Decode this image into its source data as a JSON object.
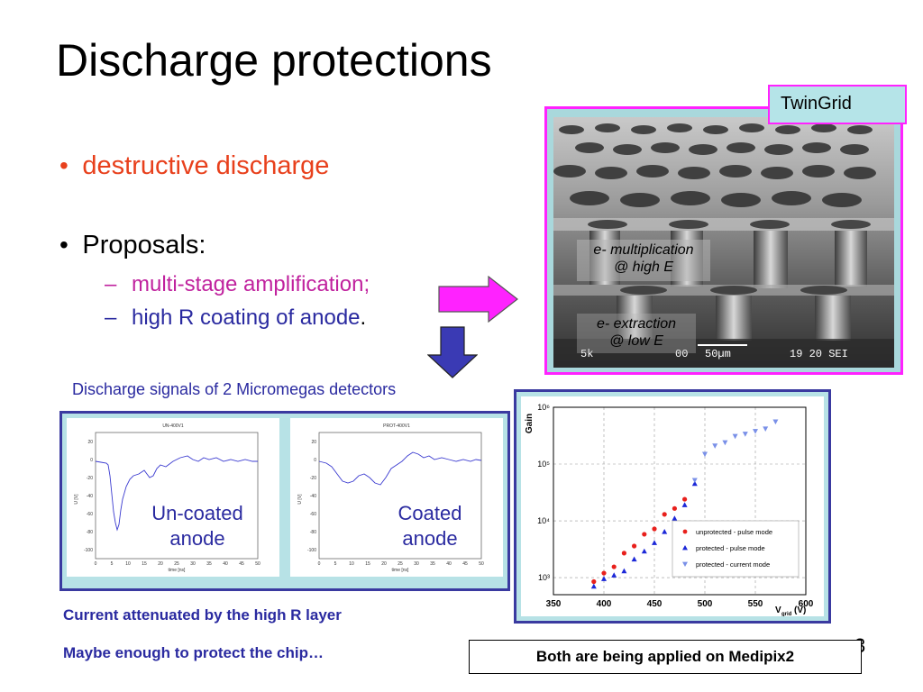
{
  "slide": {
    "title": "Discharge protections",
    "page_number_fragment": "3"
  },
  "bullets": {
    "b1": "destructive discharge",
    "b2": "Proposals:",
    "sub1": "multi-stage amplification;",
    "sub2": "high R coating of anode",
    "sub2_tail": "."
  },
  "sem": {
    "badge": "TwinGrid",
    "label_mult_1": "e- multiplication",
    "label_mult_2": "@ high E",
    "label_extr_1": "e- extraction",
    "label_extr_2": "@ low E",
    "scale_left": "5k",
    "scale_mid": "00",
    "scale_um": "50µm",
    "scale_right": "19 20 SEI"
  },
  "signals": {
    "caption": "Discharge signals of 2 Micromegas detectors",
    "left_title": "UN-400V1",
    "right_title": "PROT-400V1",
    "left_label_1": "Un-coated",
    "left_label_2": "anode",
    "right_label_1": "Coated",
    "right_label_2": "anode",
    "ylabel": "U [V]",
    "xlabel": "time [ns]",
    "y_ticks": [
      "20",
      "0",
      "-20",
      "-40",
      "-60",
      "-80",
      "-100"
    ],
    "x_ticks": [
      "0",
      "5",
      "10",
      "15",
      "20",
      "25",
      "30",
      "35",
      "40",
      "45",
      "50"
    ]
  },
  "gain_chart_text": {
    "ylabel": "Gain",
    "xlabel_main": "V",
    "xlabel_sub": "grid",
    "xlabel_unit": "(V)"
  },
  "chart_data": {
    "type": "scatter",
    "title": "",
    "xlabel": "Vgrid (V)",
    "ylabel": "Gain",
    "xlim": [
      350,
      600
    ],
    "ylim": [
      500,
      1000000
    ],
    "yscale": "log",
    "x_ticks": [
      "350",
      "400",
      "450",
      "500",
      "550",
      "600"
    ],
    "y_ticks": [
      "10³",
      "10⁴",
      "10⁵",
      "10⁶"
    ],
    "grid": true,
    "legend_position": "bottom-right",
    "series": [
      {
        "name": "unprotected - pulse mode",
        "color": "#e8201c",
        "marker": "circle",
        "points": [
          [
            390,
            850
          ],
          [
            400,
            1200
          ],
          [
            410,
            1550
          ],
          [
            420,
            2700
          ],
          [
            430,
            3600
          ],
          [
            440,
            5800
          ],
          [
            450,
            7200
          ],
          [
            460,
            13000
          ],
          [
            470,
            16500
          ],
          [
            480,
            24000
          ]
        ]
      },
      {
        "name": "protected - pulse mode",
        "color": "#1c28d8",
        "marker": "triangle-up",
        "points": [
          [
            390,
            700
          ],
          [
            400,
            950
          ],
          [
            410,
            1100
          ],
          [
            420,
            1300
          ],
          [
            430,
            2100
          ],
          [
            440,
            2900
          ],
          [
            450,
            4100
          ],
          [
            460,
            6400
          ],
          [
            470,
            11000
          ],
          [
            480,
            19000
          ],
          [
            490,
            45000
          ]
        ]
      },
      {
        "name": "protected - current mode",
        "color": "#7a90e8",
        "marker": "triangle-down",
        "points": [
          [
            490,
            52000
          ],
          [
            500,
            150000
          ],
          [
            510,
            210000
          ],
          [
            520,
            240000
          ],
          [
            530,
            310000
          ],
          [
            540,
            340000
          ],
          [
            550,
            380000
          ],
          [
            560,
            420000
          ],
          [
            570,
            560000
          ]
        ]
      }
    ]
  },
  "footer": {
    "attenuated": "Current attenuated by the high R layer",
    "protect_chip": "Maybe enough to protect the chip…",
    "medipix": "Both are being applied on Medipix2"
  }
}
